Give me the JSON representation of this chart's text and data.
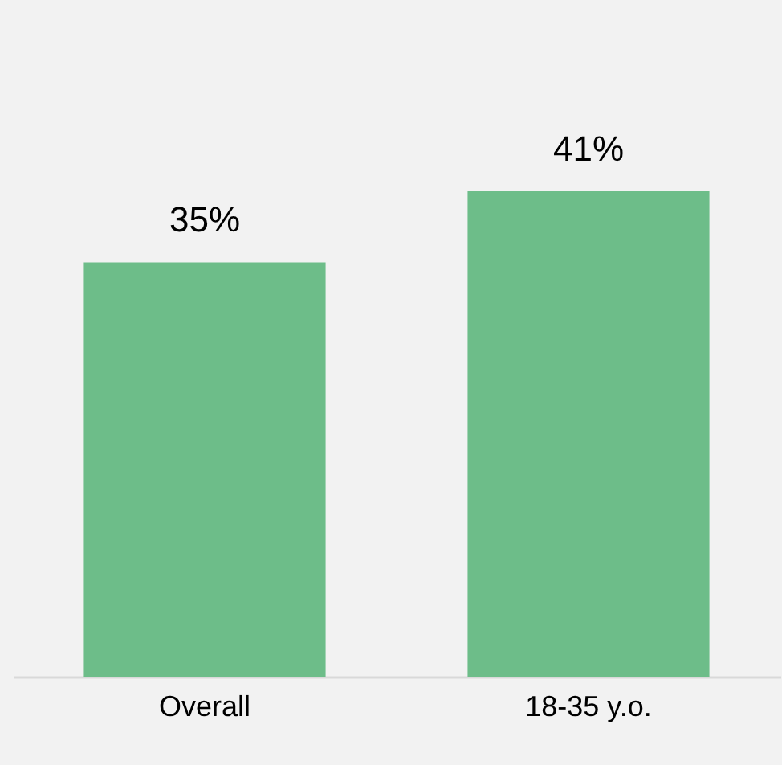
{
  "chart_data": {
    "type": "bar",
    "categories": [
      "Overall",
      "18-35 y.o."
    ],
    "values": [
      35,
      41
    ],
    "color": "#6dbd89",
    "value_labels": [
      "35%",
      "41%"
    ]
  }
}
